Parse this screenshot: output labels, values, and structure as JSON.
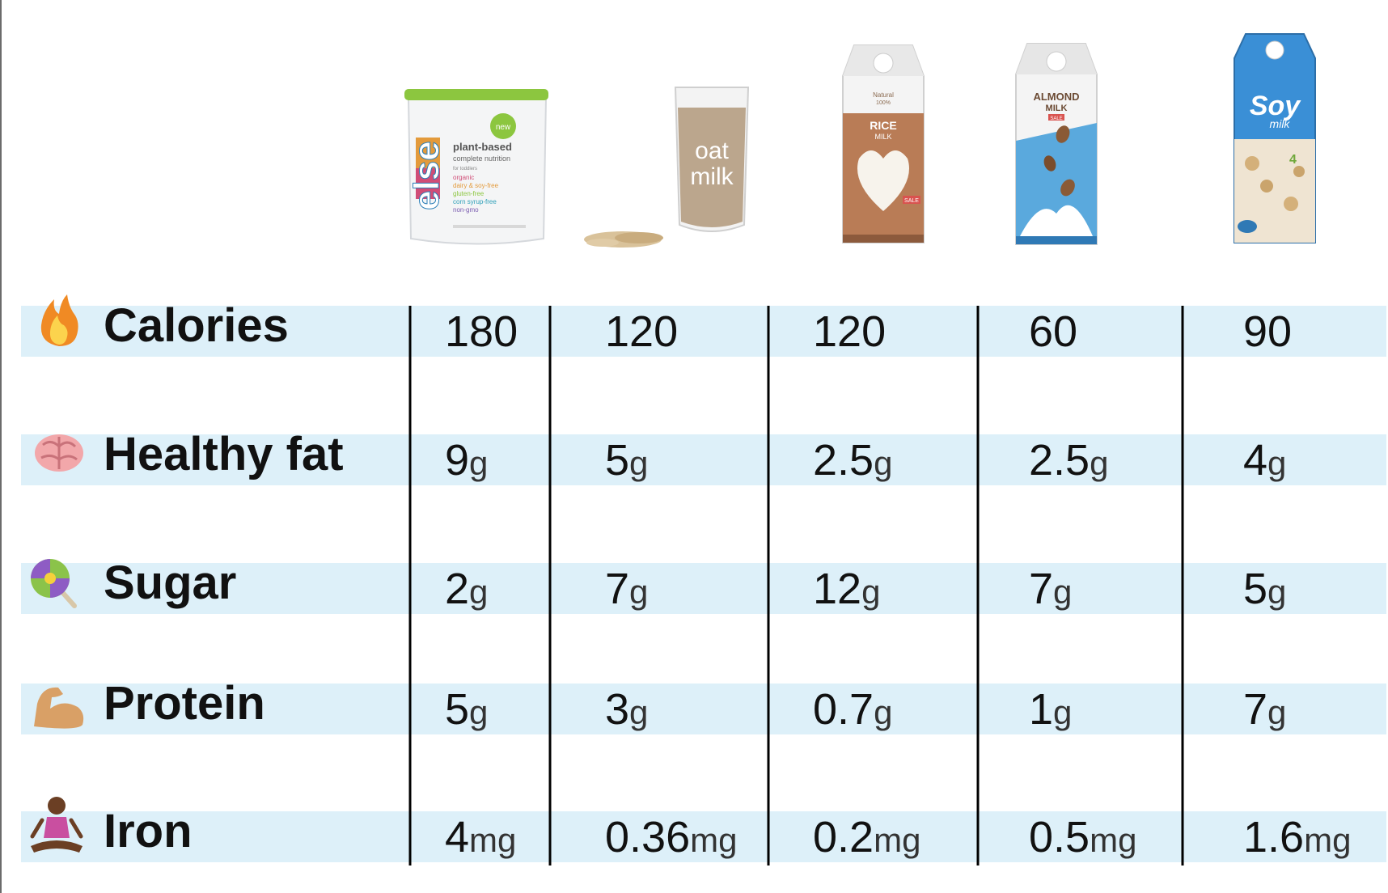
{
  "chart_data": {
    "type": "table",
    "columns": [
      {
        "label_lines": [
          "else",
          "new",
          "plant-based",
          "complete nutrition",
          "for toddlers",
          "organic",
          "dairy & soy-free",
          "gluten-free",
          "corn syrup-free",
          "non-gmo"
        ]
      },
      {
        "label_lines": [
          "oat",
          "milk"
        ]
      },
      {
        "label_lines": [
          "Natural",
          "100%",
          "RICE",
          "MILK",
          "SALE"
        ]
      },
      {
        "label_lines": [
          "ALMOND",
          "MILK",
          "SALE"
        ]
      },
      {
        "label_lines": [
          "Soy",
          "milk",
          "4"
        ]
      }
    ],
    "rows": [
      {
        "label": "Calories",
        "icon": "fire-icon",
        "values": [
          "180",
          "120",
          "120",
          "60",
          "90"
        ],
        "units": [
          "",
          "",
          "",
          "",
          ""
        ]
      },
      {
        "label": "Healthy fat",
        "icon": "brain-icon",
        "values": [
          "9",
          "5",
          "2.5",
          "2.5",
          "4"
        ],
        "units": [
          "g",
          "g",
          "g",
          "g",
          "g"
        ]
      },
      {
        "label": "Sugar",
        "icon": "lollipop-icon",
        "values": [
          "2",
          "7",
          "12",
          "7",
          "5"
        ],
        "units": [
          "g",
          "g",
          "g",
          "g",
          "g"
        ]
      },
      {
        "label": "Protein",
        "icon": "flexed-bicep-icon",
        "values": [
          "5",
          "3",
          "0.7",
          "1",
          "7"
        ],
        "units": [
          "g",
          "g",
          "g",
          "g",
          "g"
        ]
      },
      {
        "label": "Iron",
        "icon": "meditating-person-icon",
        "values": [
          "4",
          "0.36",
          "0.2",
          "0.5",
          "1.6"
        ],
        "units": [
          "mg",
          "mg",
          "mg",
          "mg",
          "mg"
        ]
      }
    ],
    "colors": {
      "band": "#ddf0f9",
      "divider": "#000000",
      "text": "#111111"
    }
  }
}
